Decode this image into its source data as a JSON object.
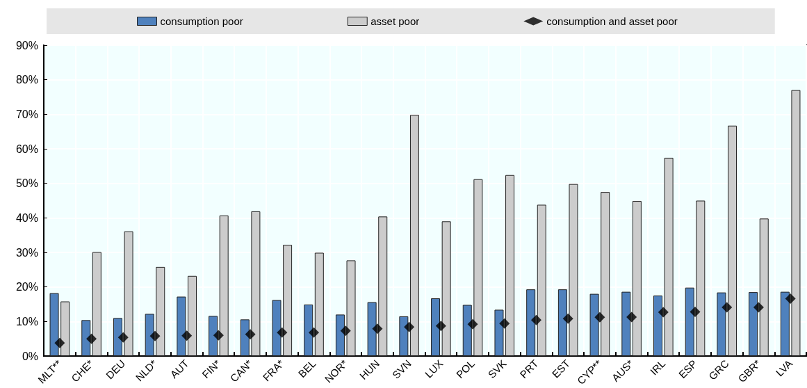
{
  "chart_data": {
    "type": "bar",
    "categories": [
      "MLT**",
      "CHE*",
      "DEU",
      "NLD*",
      "AUT",
      "FIN*",
      "CAN*",
      "FRA*",
      "BEL",
      "NOR*",
      "HUN",
      "SVN",
      "LUX",
      "POL",
      "SVK",
      "PRT",
      "EST",
      "CYP**",
      "AUS*",
      "IRL",
      "ESP",
      "GRC",
      "GBR*",
      "LVA"
    ],
    "series": [
      {
        "name": "consumption poor",
        "color": "#4f81bd",
        "values": [
          18.2,
          10.4,
          11.0,
          12.2,
          17.2,
          11.6,
          10.6,
          16.2,
          14.9,
          12.0,
          15.6,
          11.5,
          16.7,
          14.8,
          13.4,
          19.3,
          19.3,
          18.0,
          18.6,
          17.5,
          19.8,
          18.4,
          18.5,
          18.6
        ]
      },
      {
        "name": "asset poor",
        "color": "#cccccc",
        "values": [
          15.8,
          30.1,
          36.1,
          25.8,
          23.2,
          40.7,
          41.9,
          32.2,
          29.9,
          27.7,
          40.4,
          69.8,
          39.0,
          51.2,
          52.4,
          43.8,
          49.8,
          47.5,
          44.9,
          57.4,
          45.0,
          66.7,
          39.8,
          77.0
        ]
      },
      {
        "name": "consumption and asset poor",
        "type": "scatter",
        "color": "#000000",
        "marker": "diamond",
        "x": [
          "MLT**",
          "CHE*",
          "DEU",
          "NLD*",
          "AUT",
          "FIN*",
          "CAN*",
          "FRA*",
          "BEL",
          "NOR*",
          "HUN",
          "SVN",
          "LUX",
          "POL",
          "SVK",
          "PRT",
          "EST",
          "CYP**",
          "AUS*",
          "IRL",
          "ESP",
          "GRC",
          "GBR*",
          "LVA"
        ],
        "values": [
          3.8,
          5.0,
          5.4,
          5.8,
          5.9,
          6.0,
          6.3,
          6.8,
          6.8,
          7.3,
          7.9,
          8.4,
          8.7,
          9.2,
          9.4,
          10.4,
          10.8,
          11.2,
          11.3,
          12.7,
          12.8,
          14.1,
          14.1,
          16.6
        ]
      }
    ],
    "ylim": [
      0,
      90
    ],
    "yticks": [
      {
        "value": 0,
        "label": "0%"
      },
      {
        "value": 10,
        "label": "10%"
      },
      {
        "value": 20,
        "label": "20%"
      },
      {
        "value": 30,
        "label": "30%"
      },
      {
        "value": 40,
        "label": "40%"
      },
      {
        "value": 50,
        "label": "50%"
      },
      {
        "value": 60,
        "label": "60%"
      },
      {
        "value": 70,
        "label": "70%"
      },
      {
        "value": 80,
        "label": "80%"
      },
      {
        "value": 90,
        "label": "90%"
      }
    ],
    "grid": true,
    "legend": "top"
  }
}
